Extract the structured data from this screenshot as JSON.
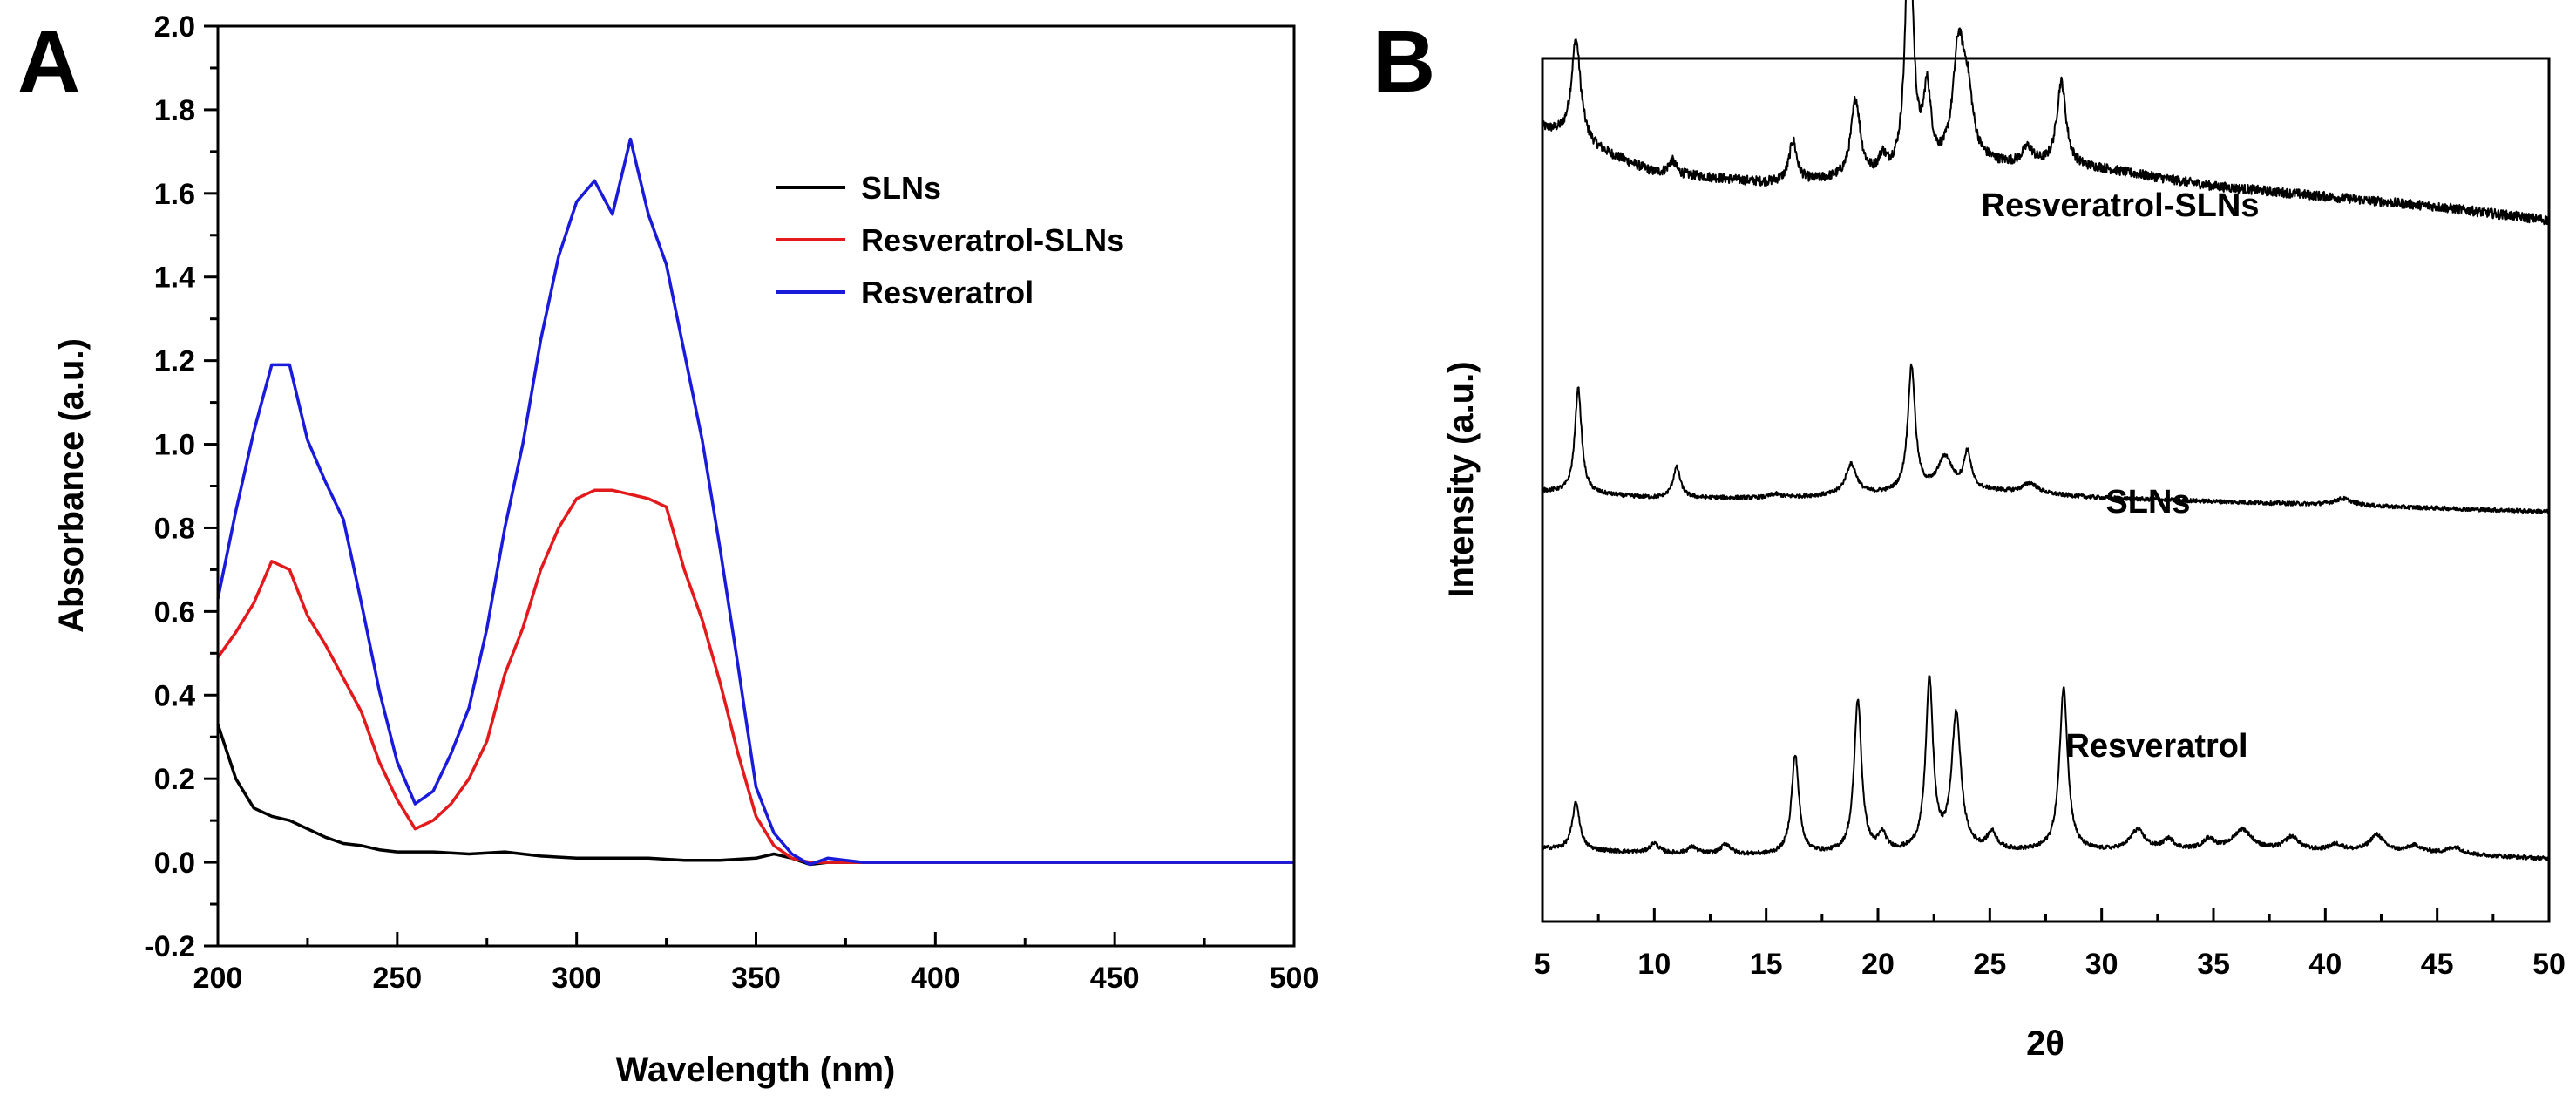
{
  "chart_data": [
    {
      "panel": "A",
      "type": "line",
      "xlabel": "Wavelength (nm)",
      "ylabel": "Absorbance (a.u.)",
      "xlim": [
        200,
        500
      ],
      "ylim": [
        -0.2,
        2.0
      ],
      "xticks": [
        "200",
        "250",
        "300",
        "350",
        "400",
        "450",
        "500"
      ],
      "yticks": [
        "-0.2",
        "0.0",
        "0.2",
        "0.4",
        "0.6",
        "0.8",
        "1.0",
        "1.2",
        "1.4",
        "1.6",
        "1.8",
        "2.0"
      ],
      "legend_position": "top-right",
      "series": [
        {
          "name": "SLNs",
          "color": "#000000",
          "points": [
            [
              200,
              0.33
            ],
            [
              205,
              0.2
            ],
            [
              210,
              0.13
            ],
            [
              215,
              0.11
            ],
            [
              220,
              0.1
            ],
            [
              225,
              0.08
            ],
            [
              230,
              0.06
            ],
            [
              235,
              0.045
            ],
            [
              240,
              0.04
            ],
            [
              245,
              0.03
            ],
            [
              250,
              0.025
            ],
            [
              260,
              0.025
            ],
            [
              270,
              0.02
            ],
            [
              280,
              0.025
            ],
            [
              290,
              0.015
            ],
            [
              300,
              0.01
            ],
            [
              310,
              0.01
            ],
            [
              320,
              0.01
            ],
            [
              330,
              0.005
            ],
            [
              340,
              0.005
            ],
            [
              350,
              0.01
            ],
            [
              355,
              0.02
            ],
            [
              360,
              0.01
            ],
            [
              365,
              -0.005
            ],
            [
              370,
              0.0
            ],
            [
              380,
              0.0
            ],
            [
              400,
              0.0
            ],
            [
              450,
              0.0
            ],
            [
              500,
              0.0
            ]
          ]
        },
        {
          "name": "Resveratrol-SLNs",
          "color": "#e31a1c",
          "points": [
            [
              200,
              0.49
            ],
            [
              205,
              0.55
            ],
            [
              210,
              0.62
            ],
            [
              215,
              0.72
            ],
            [
              220,
              0.7
            ],
            [
              225,
              0.59
            ],
            [
              230,
              0.52
            ],
            [
              235,
              0.44
            ],
            [
              240,
              0.36
            ],
            [
              245,
              0.24
            ],
            [
              250,
              0.15
            ],
            [
              255,
              0.08
            ],
            [
              260,
              0.1
            ],
            [
              265,
              0.14
            ],
            [
              270,
              0.2
            ],
            [
              275,
              0.29
            ],
            [
              280,
              0.45
            ],
            [
              285,
              0.56
            ],
            [
              290,
              0.7
            ],
            [
              295,
              0.8
            ],
            [
              300,
              0.87
            ],
            [
              305,
              0.89
            ],
            [
              310,
              0.89
            ],
            [
              315,
              0.88
            ],
            [
              320,
              0.87
            ],
            [
              325,
              0.85
            ],
            [
              330,
              0.7
            ],
            [
              335,
              0.58
            ],
            [
              340,
              0.43
            ],
            [
              345,
              0.26
            ],
            [
              350,
              0.11
            ],
            [
              355,
              0.04
            ],
            [
              360,
              0.01
            ],
            [
              365,
              0.0
            ],
            [
              370,
              0.0
            ],
            [
              400,
              0.0
            ],
            [
              450,
              0.0
            ],
            [
              500,
              0.0
            ]
          ]
        },
        {
          "name": "Resveratrol",
          "color": "#1a1adb",
          "points": [
            [
              200,
              0.63
            ],
            [
              205,
              0.84
            ],
            [
              210,
              1.03
            ],
            [
              215,
              1.19
            ],
            [
              220,
              1.19
            ],
            [
              225,
              1.01
            ],
            [
              230,
              0.91
            ],
            [
              235,
              0.82
            ],
            [
              240,
              0.62
            ],
            [
              245,
              0.41
            ],
            [
              250,
              0.24
            ],
            [
              255,
              0.14
            ],
            [
              260,
              0.17
            ],
            [
              265,
              0.26
            ],
            [
              270,
              0.37
            ],
            [
              275,
              0.56
            ],
            [
              280,
              0.8
            ],
            [
              285,
              1.0
            ],
            [
              290,
              1.25
            ],
            [
              295,
              1.45
            ],
            [
              300,
              1.58
            ],
            [
              305,
              1.63
            ],
            [
              310,
              1.55
            ],
            [
              315,
              1.73
            ],
            [
              320,
              1.55
            ],
            [
              325,
              1.43
            ],
            [
              330,
              1.22
            ],
            [
              335,
              1.01
            ],
            [
              340,
              0.75
            ],
            [
              345,
              0.47
            ],
            [
              350,
              0.18
            ],
            [
              355,
              0.07
            ],
            [
              360,
              0.02
            ],
            [
              365,
              -0.005
            ],
            [
              370,
              0.01
            ],
            [
              375,
              0.005
            ],
            [
              380,
              0.0
            ],
            [
              400,
              0.0
            ],
            [
              450,
              0.0
            ],
            [
              500,
              0.0
            ]
          ]
        }
      ]
    },
    {
      "panel": "B",
      "type": "line",
      "xlabel": "2θ",
      "ylabel": "Intensity (a.u.)",
      "xlim": [
        5,
        50
      ],
      "xticks": [
        "5",
        "10",
        "15",
        "20",
        "25",
        "30",
        "35",
        "40",
        "45",
        "50"
      ],
      "y_tick_labels": "none",
      "series": [
        {
          "name": "Resveratrol-SLNs",
          "color": "#000000",
          "label": "Resveratrol-SLNs",
          "baseline": [
            [
              5,
              0.75
            ],
            [
              10,
              0.62
            ],
            [
              15,
              0.59
            ],
            [
              20,
              0.6
            ],
            [
              25,
              0.64
            ],
            [
              30,
              0.63
            ],
            [
              35,
              0.58
            ],
            [
              40,
              0.55
            ],
            [
              45,
              0.52
            ],
            [
              50,
              0.48
            ]
          ],
          "peaks": [
            [
              6.5,
              0.3,
              0.25
            ],
            [
              10.8,
              0.04,
              0.2
            ],
            [
              16.2,
              0.12,
              0.2
            ],
            [
              19.0,
              0.23,
              0.25
            ],
            [
              20.2,
              0.05,
              0.2
            ],
            [
              21.4,
              0.78,
              0.2
            ],
            [
              22.2,
              0.22,
              0.2
            ],
            [
              23.6,
              0.33,
              0.3
            ],
            [
              24.0,
              0.18,
              0.3
            ],
            [
              26.7,
              0.05,
              0.3
            ],
            [
              28.2,
              0.25,
              0.25
            ]
          ]
        },
        {
          "name": "SLNs",
          "color": "#000000",
          "label": "SLNs",
          "baseline": [
            [
              5,
              0.35
            ],
            [
              10,
              0.33
            ],
            [
              15,
              0.33
            ],
            [
              20,
              0.34
            ],
            [
              25,
              0.35
            ],
            [
              30,
              0.33
            ],
            [
              35,
              0.32
            ],
            [
              40,
              0.31
            ],
            [
              45,
              0.3
            ],
            [
              50,
              0.29
            ]
          ],
          "peaks": [
            [
              6.6,
              0.31,
              0.18
            ],
            [
              11.0,
              0.09,
              0.2
            ],
            [
              15.4,
              0.01,
              0.3
            ],
            [
              18.8,
              0.09,
              0.3
            ],
            [
              21.5,
              0.37,
              0.2
            ],
            [
              23.0,
              0.1,
              0.4
            ],
            [
              24.0,
              0.11,
              0.2
            ],
            [
              26.8,
              0.03,
              0.4
            ],
            [
              40.8,
              0.02,
              0.5
            ]
          ]
        },
        {
          "name": "Resveratrol",
          "color": "#000000",
          "label": "Resveratrol",
          "baseline": [
            [
              5,
              0.03
            ],
            [
              10,
              0.015
            ],
            [
              15,
              0.01
            ],
            [
              20,
              0.015
            ],
            [
              25,
              0.02
            ],
            [
              30,
              0.02
            ],
            [
              35,
              0.025
            ],
            [
              40,
              0.02
            ],
            [
              45,
              0.015
            ],
            [
              50,
              0.0
            ]
          ],
          "peaks": [
            [
              6.5,
              0.14,
              0.2
            ],
            [
              10.0,
              0.03,
              0.25
            ],
            [
              11.7,
              0.02,
              0.25
            ],
            [
              13.2,
              0.03,
              0.25
            ],
            [
              16.3,
              0.29,
              0.2
            ],
            [
              19.1,
              0.45,
              0.2
            ],
            [
              20.2,
              0.05,
              0.2
            ],
            [
              22.3,
              0.5,
              0.2
            ],
            [
              23.5,
              0.4,
              0.25
            ],
            [
              25.1,
              0.05,
              0.25
            ],
            [
              28.3,
              0.48,
              0.22
            ],
            [
              31.6,
              0.06,
              0.4
            ],
            [
              33.0,
              0.03,
              0.3
            ],
            [
              34.8,
              0.03,
              0.3
            ],
            [
              36.3,
              0.06,
              0.5
            ],
            [
              38.5,
              0.04,
              0.4
            ],
            [
              40.5,
              0.02,
              0.4
            ],
            [
              42.3,
              0.05,
              0.4
            ],
            [
              44.0,
              0.02,
              0.4
            ],
            [
              45.8,
              0.02,
              0.4
            ]
          ]
        }
      ]
    }
  ]
}
